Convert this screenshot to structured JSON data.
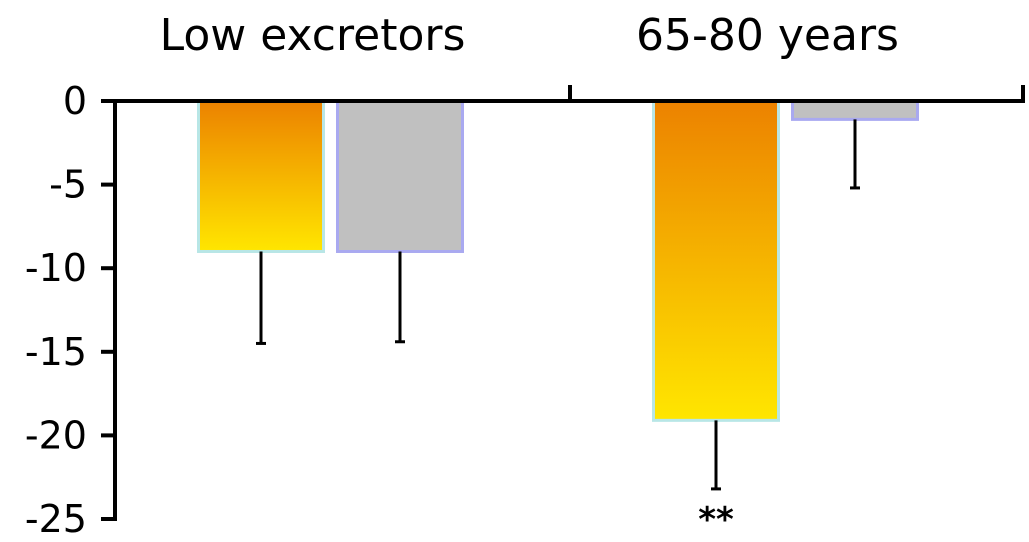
{
  "chart_data": {
    "type": "bar",
    "categories": [
      "Low excretors",
      "65-80 years"
    ],
    "series": [
      {
        "color": "#F5B000",
        "values": [
          -9.0,
          -19.1
        ],
        "error": [
          5.5,
          4.1
        ]
      },
      {
        "color": "#C0C0C0",
        "values": [
          -9.0,
          -1.1
        ],
        "error": [
          5.4,
          4.1
        ]
      }
    ],
    "ylim": [
      -25,
      0
    ],
    "yticks": [
      0,
      -5,
      -10,
      -15,
      -20,
      -25
    ],
    "xaxis_position": "top",
    "annotations": [
      {
        "category": 1,
        "series": 0,
        "text": "**"
      }
    ]
  }
}
